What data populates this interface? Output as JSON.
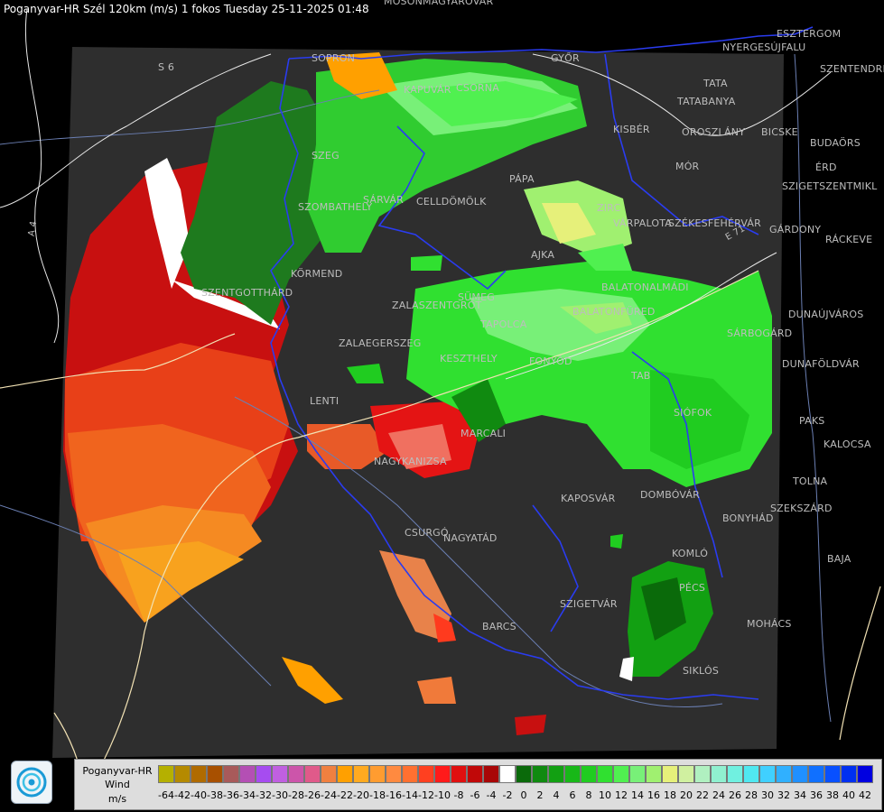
{
  "title": "Poganyvar-HR Szél 120km (m/s) 1 fokos Tuesday 25-11-2025 01:48",
  "places": [
    {
      "name": "MOSONMAGYARÓVÁR"
    },
    {
      "name": "S 6"
    },
    {
      "name": "SOPRON"
    },
    {
      "name": "GYŐR"
    },
    {
      "name": "ESZTERGOM"
    },
    {
      "name": "NYERGESÚJFALU"
    },
    {
      "name": "SZENTENDRE"
    },
    {
      "name": "TATA"
    },
    {
      "name": "TATABANYA"
    },
    {
      "name": "KAPUVÁR"
    },
    {
      "name": "CSORNA"
    },
    {
      "name": "KISBÉR"
    },
    {
      "name": "OROSZLÁNY"
    },
    {
      "name": "BICSKE"
    },
    {
      "name": "BUDAÖRS"
    },
    {
      "name": "MÓR"
    },
    {
      "name": "ÉRD"
    },
    {
      "name": "SZIGETSZENTMIKL"
    },
    {
      "name": "SZEG"
    },
    {
      "name": "PÁPA"
    },
    {
      "name": "SÁRVÁR"
    },
    {
      "name": "CELLDÖMÖLK"
    },
    {
      "name": "SZOMBATHELY"
    },
    {
      "name": "ZIRC"
    },
    {
      "name": "VÁRPALOTA"
    },
    {
      "name": "SZÉKESFEHÉRVÁR"
    },
    {
      "name": "GÁRDONY"
    },
    {
      "name": "RÁCKEVE"
    },
    {
      "name": "AJKA"
    },
    {
      "name": "KÖRMEND"
    },
    {
      "name": "SZENTGOTTHÁRD"
    },
    {
      "name": "SÜMEG"
    },
    {
      "name": "BALATONALMÁDI"
    },
    {
      "name": "ZALASZENTGRÓT"
    },
    {
      "name": "TAPOLCA"
    },
    {
      "name": "BALATONFÜRED"
    },
    {
      "name": "DUNAÚJVÁROS"
    },
    {
      "name": "ZALAEGERSZEG"
    },
    {
      "name": "SÁRBOGÁRD"
    },
    {
      "name": "KESZTHELY"
    },
    {
      "name": "FONYÓD"
    },
    {
      "name": "TAB"
    },
    {
      "name": "DUNAFÖLDVÁR"
    },
    {
      "name": "LENTI"
    },
    {
      "name": "SIÓFOK"
    },
    {
      "name": "PAKS"
    },
    {
      "name": "MARCALI"
    },
    {
      "name": "KALOCSA"
    },
    {
      "name": "NAGYKANIZSA"
    },
    {
      "name": "TOLNA"
    },
    {
      "name": "KAPOSVÁR"
    },
    {
      "name": "DOMBÓVÁR"
    },
    {
      "name": "SZEKSZÁRD"
    },
    {
      "name": "BONYHÁD"
    },
    {
      "name": "CSURGÓ"
    },
    {
      "name": "NAGYATÁD"
    },
    {
      "name": "KOMLÓ"
    },
    {
      "name": "BAJA"
    },
    {
      "name": "PÉCS"
    },
    {
      "name": "SZIGETVÁR"
    },
    {
      "name": "MOHÁCS"
    },
    {
      "name": "BARCS"
    },
    {
      "name": "SIKLÓS"
    },
    {
      "name": "A 4"
    },
    {
      "name": "E 71"
    }
  ],
  "legend": {
    "name": "Poganyvar-HR",
    "label": "Wind",
    "unit": "m/s",
    "scale": [
      {
        "v": "-64",
        "c": "#b5b000"
      },
      {
        "v": "-42",
        "c": "#b58a00"
      },
      {
        "v": "-40",
        "c": "#b06b00"
      },
      {
        "v": "-38",
        "c": "#a85000"
      },
      {
        "v": "-36",
        "c": "#a85a5a"
      },
      {
        "v": "-34",
        "c": "#b44fb4"
      },
      {
        "v": "-32",
        "c": "#a64cf0"
      },
      {
        "v": "-30",
        "c": "#c060e0"
      },
      {
        "v": "-28",
        "c": "#cc55aa"
      },
      {
        "v": "-26",
        "c": "#e05a8a"
      },
      {
        "v": "-24",
        "c": "#f08040"
      },
      {
        "v": "-22",
        "c": "#ffa000"
      },
      {
        "v": "-20",
        "c": "#ffaa20"
      },
      {
        "v": "-18",
        "c": "#ff9c30"
      },
      {
        "v": "-16",
        "c": "#ff8a40"
      },
      {
        "v": "-14",
        "c": "#ff7030"
      },
      {
        "v": "-12",
        "c": "#ff4020"
      },
      {
        "v": "-10",
        "c": "#ff1a1a"
      },
      {
        "v": "-8",
        "c": "#e01010"
      },
      {
        "v": "-6",
        "c": "#c00808"
      },
      {
        "v": "-4",
        "c": "#a80606"
      },
      {
        "v": "-2",
        "c": "#ffffff"
      },
      {
        "v": "0",
        "c": "#0a6a0a"
      },
      {
        "v": "2",
        "c": "#108a10"
      },
      {
        "v": "4",
        "c": "#12a012"
      },
      {
        "v": "6",
        "c": "#18b818"
      },
      {
        "v": "8",
        "c": "#20cc20"
      },
      {
        "v": "10",
        "c": "#30e030"
      },
      {
        "v": "12",
        "c": "#50f050"
      },
      {
        "v": "14",
        "c": "#78f078"
      },
      {
        "v": "16",
        "c": "#a0f070"
      },
      {
        "v": "18",
        "c": "#e6f07a"
      },
      {
        "v": "20",
        "c": "#d0f0a0"
      },
      {
        "v": "22",
        "c": "#b0f0c0"
      },
      {
        "v": "24",
        "c": "#90f0d0"
      },
      {
        "v": "26",
        "c": "#70f0e0"
      },
      {
        "v": "28",
        "c": "#50e8f0"
      },
      {
        "v": "30",
        "c": "#40d0ff"
      },
      {
        "v": "32",
        "c": "#30b0ff"
      },
      {
        "v": "34",
        "c": "#2090ff"
      },
      {
        "v": "36",
        "c": "#1070ff"
      },
      {
        "v": "38",
        "c": "#0850ff"
      },
      {
        "v": "40",
        "c": "#0030f0"
      },
      {
        "v": "42",
        "c": "#0000e0"
      }
    ]
  },
  "colors": {
    "background": "#000000",
    "radar_area": "#2e2e2e",
    "border": "#2a3cf0",
    "rivers": "#6b7fb3",
    "roads": "#f2e2b4"
  }
}
